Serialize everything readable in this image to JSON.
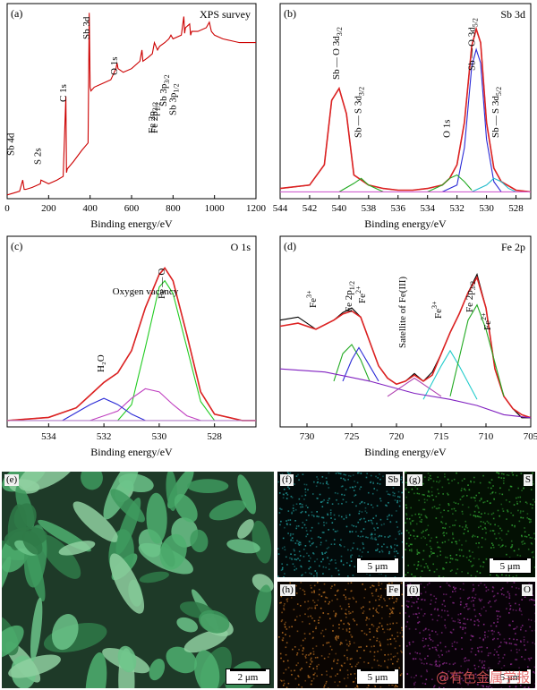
{
  "chart_data": [
    {
      "id": "a",
      "type": "line",
      "panel_label": "(a)",
      "title": "XPS survey",
      "xlabel": "Binding energy/eV",
      "ylabel": "",
      "xlim": [
        0,
        1200
      ],
      "xticks": [
        0,
        200,
        400,
        600,
        800,
        1000,
        1200
      ],
      "grid": false,
      "series": [
        {
          "color": "#cc0000",
          "x": [
            0,
            30,
            60,
            75,
            82,
            90,
            120,
            160,
            163,
            200,
            240,
            270,
            283,
            286,
            290,
            320,
            360,
            390,
            396,
            400,
            404,
            420,
            460,
            500,
            525,
            530,
            535,
            560,
            600,
            640,
            650,
            655,
            680,
            700,
            710,
            725,
            735,
            760,
            780,
            790,
            800,
            840,
            852,
            856,
            860,
            880,
            885,
            890,
            920,
            960,
            975,
            985,
            1000,
            1040,
            1080,
            1120,
            1160,
            1200
          ],
          "y": [
            2,
            3,
            4,
            10,
            5,
            5,
            6,
            8,
            10,
            8,
            10,
            12,
            55,
            14,
            16,
            20,
            26,
            30,
            100,
            60,
            58,
            60,
            62,
            64,
            70,
            73,
            70,
            68,
            70,
            74,
            80,
            74,
            76,
            78,
            84,
            80,
            82,
            84,
            86,
            88,
            86,
            88,
            98,
            89,
            92,
            94,
            88,
            90,
            90,
            92,
            95,
            90,
            88,
            86,
            85,
            84,
            84,
            84
          ]
        }
      ],
      "annotations": [
        {
          "text": "Sb 4d",
          "x": 33
        },
        {
          "text": "S 2s",
          "x": 162
        },
        {
          "text": "C 1s",
          "x": 285
        },
        {
          "text": "Sb 3d",
          "x": 398
        },
        {
          "text": "O 1s",
          "x": 530
        },
        {
          "text": "Fe 2p",
          "sub": "3/2",
          "x": 712
        },
        {
          "text": "Fe 2p",
          "sub": "1/2",
          "x": 726
        },
        {
          "text": "Sb 3p",
          "sub": "3/2",
          "x": 768
        },
        {
          "text": "Sb 3p",
          "sub": "1/2",
          "x": 813
        }
      ]
    },
    {
      "id": "b",
      "type": "line",
      "panel_label": "(b)",
      "title": "Sb 3d",
      "xlabel": "Binding energy/eV",
      "ylabel": "",
      "xlim": [
        544,
        527
      ],
      "xticks": [
        544,
        542,
        540,
        538,
        536,
        534,
        532,
        530,
        528
      ],
      "grid": false,
      "series": [
        {
          "color": "#000000",
          "x": [
            544,
            542,
            541,
            540.5,
            540,
            539.5,
            539,
            538,
            537,
            536,
            535,
            534,
            533,
            532.5,
            532,
            531.5,
            531,
            530.7,
            530.4,
            530,
            529.5,
            529,
            528,
            527
          ],
          "y": [
            6,
            8,
            20,
            58,
            65,
            50,
            14,
            8,
            6,
            5,
            5,
            6,
            8,
            12,
            20,
            45,
            90,
            100,
            92,
            45,
            18,
            10,
            5,
            4
          ]
        },
        {
          "color": "#dd2222",
          "x": [
            544,
            542,
            541,
            540.5,
            540,
            539.5,
            539,
            538,
            537,
            536,
            535,
            534,
            533,
            532.5,
            532,
            531.5,
            531,
            530.7,
            530.4,
            530,
            529.5,
            529,
            528,
            527
          ],
          "y": [
            6,
            8,
            20,
            58,
            65,
            50,
            14,
            8,
            6,
            5,
            5,
            6,
            8,
            12,
            20,
            45,
            90,
            100,
            92,
            45,
            18,
            10,
            5,
            4
          ]
        },
        {
          "color": "#2a2ad6",
          "x": [
            533,
            532,
            531.5,
            531,
            530.7,
            530.4,
            530,
            529.5,
            529
          ],
          "y": [
            4,
            8,
            30,
            78,
            88,
            80,
            35,
            10,
            4
          ]
        },
        {
          "color": "#22aa22",
          "x": [
            534,
            533,
            532.5,
            532,
            531.5,
            531
          ],
          "y": [
            4,
            8,
            12,
            14,
            10,
            5
          ]
        },
        {
          "color": "#22bbcc",
          "x": [
            531,
            530,
            529.5,
            529,
            528.5,
            528
          ],
          "y": [
            4,
            8,
            12,
            10,
            6,
            4
          ]
        },
        {
          "color": "#22aa22",
          "x": [
            540,
            539,
            538.5,
            538,
            537
          ],
          "y": [
            4,
            9,
            12,
            8,
            4
          ]
        },
        {
          "color": "#d060d0",
          "x": [
            544,
            527
          ],
          "y": [
            4,
            4
          ]
        }
      ],
      "annotations": [
        {
          "text": "Sb — O 3d",
          "sub": "3/2",
          "x": 540
        },
        {
          "text": "Sb — S 3d",
          "sub": "3/2",
          "x": 538.5
        },
        {
          "text": "O 1s",
          "x": 532.5
        },
        {
          "text": "Sb — O 3d",
          "sub": "5/2",
          "x": 530.8
        },
        {
          "text": "Sb — S 3d",
          "sub": "5/2",
          "x": 529.2
        }
      ]
    },
    {
      "id": "c",
      "type": "line",
      "panel_label": "(c)",
      "title": "O 1s",
      "xlabel": "Binding energy/eV",
      "ylabel": "",
      "xlim": [
        535.5,
        526.5
      ],
      "xticks": [
        534,
        532,
        530,
        528
      ],
      "grid": false,
      "series": [
        {
          "color": "#000000",
          "x": [
            535.5,
            534,
            533,
            532.5,
            532,
            531.5,
            531,
            530.5,
            530,
            529.8,
            529.5,
            529,
            528.5,
            528,
            527,
            526.5
          ],
          "y": [
            4,
            6,
            12,
            20,
            28,
            34,
            48,
            75,
            96,
            100,
            92,
            58,
            22,
            8,
            4,
            4
          ]
        },
        {
          "color": "#dd2222",
          "x": [
            535.5,
            534,
            533,
            532.5,
            532,
            531.5,
            531,
            530.5,
            530,
            529.8,
            529.5,
            529,
            528.5,
            528,
            527,
            526.5
          ],
          "y": [
            4,
            6,
            12,
            20,
            28,
            34,
            48,
            75,
            96,
            100,
            92,
            58,
            22,
            8,
            4,
            4
          ]
        },
        {
          "color": "#22cc22",
          "x": [
            531.5,
            531,
            530.5,
            530,
            529.8,
            529.5,
            529,
            528.5,
            528
          ],
          "y": [
            4,
            14,
            50,
            88,
            92,
            84,
            50,
            16,
            4
          ]
        },
        {
          "color": "#c040c0",
          "x": [
            532.5,
            531.5,
            531,
            530.5,
            530,
            529.5,
            529,
            528.5
          ],
          "y": [
            4,
            10,
            18,
            24,
            22,
            14,
            7,
            4
          ]
        },
        {
          "color": "#2a2ad6",
          "x": [
            533.5,
            532.5,
            532,
            531.5,
            531,
            530.5
          ],
          "y": [
            4,
            14,
            18,
            14,
            8,
            4
          ]
        },
        {
          "color": "#b07cc8",
          "x": [
            535.5,
            526.5
          ],
          "y": [
            4,
            4
          ]
        }
      ],
      "annotations": [
        {
          "text": "H₂O",
          "x": 532
        },
        {
          "text": "Oxygen vacancy",
          "x": 530.5
        },
        {
          "text": "Fe — O",
          "x": 529.8
        }
      ]
    },
    {
      "id": "d",
      "type": "line",
      "panel_label": "(d)",
      "title": "Fe 2p",
      "xlabel": "Binding energy/eV",
      "ylabel": "",
      "xlim": [
        733,
        705
      ],
      "xticks": [
        730,
        725,
        720,
        715,
        710,
        705
      ],
      "grid": false,
      "series": [
        {
          "color": "#000000",
          "x": [
            733,
            731,
            729,
            727,
            726,
            725,
            724,
            723,
            722,
            721,
            720,
            719,
            718,
            717,
            716,
            715,
            714,
            713,
            712,
            711,
            710,
            709,
            708,
            707,
            706,
            705
          ],
          "y": [
            70,
            72,
            64,
            70,
            75,
            78,
            72,
            56,
            40,
            32,
            28,
            30,
            35,
            30,
            36,
            48,
            62,
            74,
            88,
            100,
            78,
            38,
            20,
            12,
            6,
            6
          ]
        },
        {
          "color": "#dd2222",
          "x": [
            733,
            731,
            729,
            727,
            726,
            725,
            724,
            723,
            722,
            721,
            720,
            719,
            718,
            717,
            716,
            715,
            714,
            713,
            712,
            711,
            710,
            709,
            708,
            707,
            706,
            705
          ],
          "y": [
            66,
            68,
            64,
            70,
            74,
            76,
            72,
            56,
            40,
            32,
            28,
            30,
            34,
            30,
            34,
            48,
            62,
            74,
            88,
            98,
            78,
            38,
            20,
            12,
            8,
            6
          ]
        },
        {
          "color": "#22aa22",
          "x": [
            727,
            726,
            725,
            724,
            723
          ],
          "y": [
            30,
            48,
            54,
            44,
            30
          ]
        },
        {
          "color": "#2a2ad6",
          "x": [
            726,
            725,
            724.2,
            723,
            722
          ],
          "y": [
            30,
            44,
            52,
            40,
            30
          ]
        },
        {
          "color": "#b040b0",
          "x": [
            721,
            719,
            718,
            717,
            715
          ],
          "y": [
            20,
            28,
            32,
            28,
            20
          ]
        },
        {
          "color": "#22cccc",
          "x": [
            717,
            715,
            714,
            713,
            711
          ],
          "y": [
            18,
            40,
            50,
            40,
            18
          ]
        },
        {
          "color": "#22aa22",
          "x": [
            714,
            712,
            711,
            710,
            708
          ],
          "y": [
            20,
            70,
            80,
            64,
            20
          ]
        },
        {
          "color": "#8020c0",
          "x": [
            733,
            728,
            723,
            718,
            714,
            711,
            708,
            705
          ],
          "y": [
            38,
            36,
            30,
            22,
            18,
            14,
            8,
            6
          ]
        }
      ],
      "annotations": [
        {
          "text": "Fe",
          "sup": "3+",
          "x": 729
        },
        {
          "text": "Fe 2p",
          "sub": "1/2",
          "x": 725
        },
        {
          "text": "Fe",
          "sup": "2+",
          "x": 723.5
        },
        {
          "text": "Satellite of Fe(III)",
          "x": 719
        },
        {
          "text": "Fe",
          "sup": "3+",
          "x": 715
        },
        {
          "text": "Fe 2p",
          "sub": "3/2",
          "x": 711.5
        },
        {
          "text": "Fe",
          "sup": "2+",
          "x": 709.5
        }
      ]
    }
  ],
  "images": {
    "e": {
      "label": "(e)",
      "scale": "2 μm",
      "element": "",
      "color": "#3aaa66"
    },
    "f": {
      "label": "(f)",
      "scale": "5 μm",
      "element": "Sb",
      "color": "#1f8f8f"
    },
    "g": {
      "label": "(g)",
      "scale": "5 μm",
      "element": "S",
      "color": "#2f9a2f"
    },
    "h": {
      "label": "(h)",
      "scale": "5 μm",
      "element": "Fe",
      "color": "#b06a20"
    },
    "i": {
      "label": "(i)",
      "scale": "5 μm",
      "element": "O",
      "color": "#8a2a8a"
    }
  },
  "watermark": "@有色金属学报"
}
